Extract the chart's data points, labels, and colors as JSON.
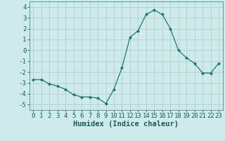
{
  "x": [
    0,
    1,
    2,
    3,
    4,
    5,
    6,
    7,
    8,
    9,
    10,
    11,
    12,
    13,
    14,
    15,
    16,
    17,
    18,
    19,
    20,
    21,
    22,
    23
  ],
  "y": [
    -2.7,
    -2.7,
    -3.1,
    -3.3,
    -3.6,
    -4.1,
    -4.3,
    -4.3,
    -4.4,
    -4.9,
    -3.6,
    -1.6,
    1.2,
    1.8,
    3.3,
    3.7,
    3.3,
    2.0,
    0.0,
    -0.7,
    -1.2,
    -2.1,
    -2.1,
    -1.2
  ],
  "line_color": "#1a7a6e",
  "marker": "D",
  "marker_size": 2.0,
  "bg_color": "#ceeaea",
  "grid_color": "#b0d0d0",
  "xlabel": "Humidex (Indice chaleur)",
  "xlim": [
    -0.5,
    23.5
  ],
  "ylim": [
    -5.5,
    4.5
  ],
  "yticks": [
    -5,
    -4,
    -3,
    -2,
    -1,
    0,
    1,
    2,
    3,
    4
  ],
  "xtick_labels": [
    "0",
    "1",
    "2",
    "3",
    "4",
    "5",
    "6",
    "7",
    "8",
    "9",
    "10",
    "11",
    "12",
    "13",
    "14",
    "15",
    "16",
    "17",
    "18",
    "19",
    "20",
    "21",
    "22",
    "23"
  ],
  "tick_fontsize": 6.5,
  "xlabel_fontsize": 7.5,
  "spine_color": "#5a9a9a",
  "tick_color": "#1a5a5a"
}
